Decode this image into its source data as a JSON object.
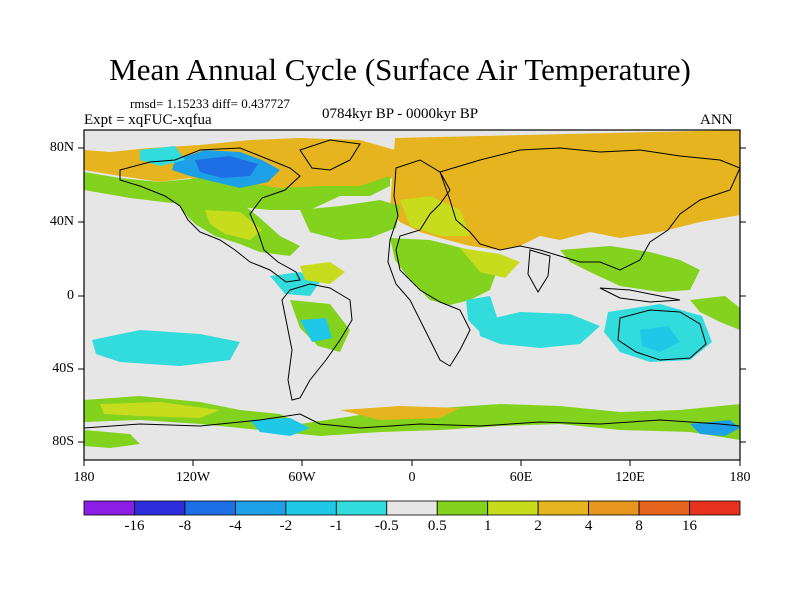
{
  "title": "Mean Annual Cycle (Surface Air Temperature)",
  "stats": "rmsd= 1.15233 diff= 0.437727",
  "experiment": "Expt = xqFUC-xqfua",
  "period": "0784kyr BP - 0000kyr BP",
  "season": "ANN",
  "y_axis_labels": [
    "80N",
    "40N",
    "0",
    "40S",
    "80S"
  ],
  "x_axis_labels": [
    "180",
    "120W",
    "60W",
    "0",
    "60E",
    "120E",
    "180"
  ],
  "colorbar": {
    "labels": [
      "-16",
      "-8",
      "-4",
      "-2",
      "-1",
      "-0.5",
      "0.5",
      "1",
      "2",
      "4",
      "8",
      "16"
    ],
    "colors": [
      "#8c1ee6",
      "#2d2ddc",
      "#1e6ee6",
      "#1ea0e6",
      "#1ec8e6",
      "#32dcdc",
      "#e6e6e6",
      "#82d21e",
      "#c8dc1e",
      "#e6b41e",
      "#e6961e",
      "#e6641e",
      "#e6321e"
    ]
  }
}
